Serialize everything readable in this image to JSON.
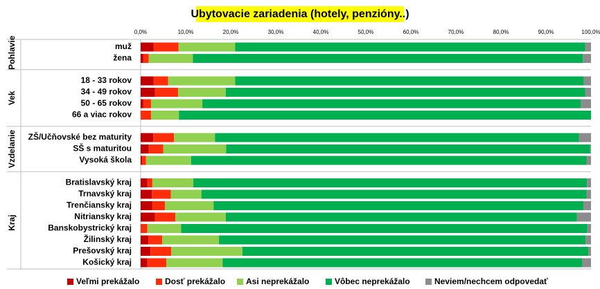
{
  "chart_data": {
    "type": "stacked-bar-horizontal",
    "title": "Ubytovacie zariadenia (hotely, penzióny..)",
    "groups": [
      {
        "label": "Pohlavie",
        "categories": [
          "muž",
          "žena"
        ]
      },
      {
        "label": "Vek",
        "categories": [
          "18 - 33 rokov",
          "34 - 49 rokov",
          "50 - 65 rokov",
          "66 a viac rokov"
        ]
      },
      {
        "label": "Vzdelanie",
        "categories": [
          "ZŠ/Učňovské bez maturity",
          "SŠ s maturitou",
          "Vysoká škola"
        ]
      },
      {
        "label": "Kraj",
        "categories": [
          "Bratislavský kraj",
          "Trnavský kraj",
          "Trenčiansky kraj",
          "Nitriansky kraj",
          "Banskobystrický kraj",
          "Žilinský kraj",
          "Prešovský kraj",
          "Košický kraj"
        ]
      }
    ],
    "series": [
      {
        "name": "Veľmi prekážalo",
        "color": "#c00000",
        "values": [
          2.9,
          0.6,
          2.9,
          3.2,
          0.6,
          0,
          2.8,
          1.8,
          0.3,
          1.5,
          2.5,
          2.6,
          3.2,
          0,
          1.7,
          2.2,
          1.5
        ]
      },
      {
        "name": "Dosť  prekážalo",
        "color": "#ff2d0a",
        "values": [
          5.5,
          1.2,
          3.2,
          5.1,
          1.7,
          2.3,
          4.6,
          3.2,
          0.9,
          1.1,
          4.2,
          2.8,
          4.5,
          1.5,
          3.1,
          4.6,
          4.2
        ]
      },
      {
        "name": "Asi  neprekážalo",
        "color": "#92d050",
        "values": [
          12.6,
          9.8,
          14.9,
          10.6,
          11.4,
          6.2,
          9.1,
          14.0,
          10.0,
          9.1,
          6.8,
          10.8,
          11.2,
          7.5,
          12.6,
          15.8,
          12.5
        ]
      },
      {
        "name": "Vôbec neprekážalo",
        "color": "#00b050",
        "values": [
          77.7,
          86.6,
          77.4,
          79.8,
          84.0,
          91.5,
          80.8,
          80.8,
          87.8,
          87.4,
          85.5,
          82.1,
          78.0,
          90.2,
          81.4,
          76.8,
          79.8
        ]
      },
      {
        "name": "Neviem/nechcem odpovedať",
        "color": "#8c8c8c",
        "values": [
          1.3,
          1.8,
          1.6,
          1.3,
          2.3,
          0,
          2.7,
          0.2,
          1.0,
          0.9,
          1.0,
          1.7,
          3.1,
          0.8,
          1.2,
          0.6,
          2.0
        ]
      }
    ],
    "xlim": [
      0,
      100
    ],
    "xticks": [
      {
        "value": 0,
        "label": "0,0%"
      },
      {
        "value": 10,
        "label": "10,0%"
      },
      {
        "value": 20,
        "label": "20,0%"
      },
      {
        "value": 30,
        "label": "30,0%"
      },
      {
        "value": 40,
        "label": "40,0%"
      },
      {
        "value": 50,
        "label": "50,0%"
      },
      {
        "value": 60,
        "label": "60,0%"
      },
      {
        "value": 70,
        "label": "70,0%"
      },
      {
        "value": 80,
        "label": "80,0%"
      },
      {
        "value": 90,
        "label": "90,0%"
      },
      {
        "value": 100,
        "label": "100,0%"
      }
    ]
  }
}
